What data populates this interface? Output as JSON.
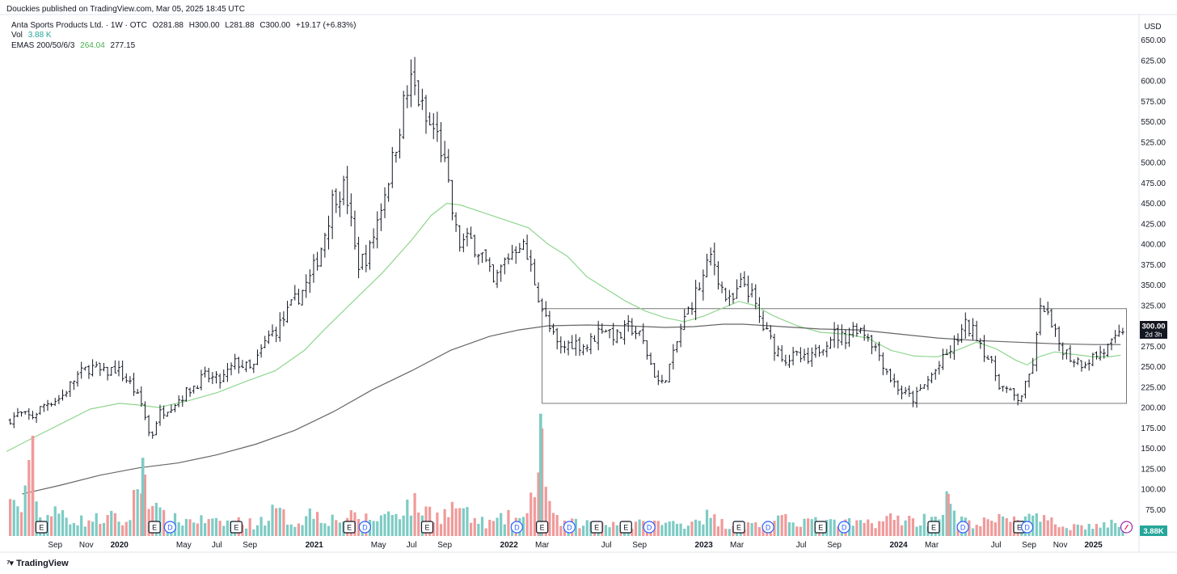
{
  "publisher_line": "Douckies published on TradingView.com, Mar 05, 2025 18:45 UTC",
  "legend": {
    "symbol": "Anta Sports Products Ltd. · 1W · OTC",
    "open": "O281.88",
    "high": "H300.00",
    "low": "L281.88",
    "close": "C300.00",
    "change": "+19.17 (+6.83%)",
    "vol_label": "Vol",
    "vol_value": "3.88 K",
    "emas_label": "EMAS 200/50/6/3",
    "ema50_value": "264.04",
    "ema200_value": "277.15"
  },
  "footer": {
    "brand": "TradingView"
  },
  "colors": {
    "up_volume": "#7dcbc4",
    "down_volume": "#f09a9a",
    "ema50": "#8fd68f",
    "ema200": "#666666",
    "bars": "#131722",
    "badge_dividend": "#2962ff",
    "price_tag_bg": "#131722",
    "volume_tag_bg": "#26a69a"
  },
  "chart_data": {
    "type": "ohlc",
    "title": "Anta Sports Products Ltd. · 1W · OTC",
    "currency": "USD",
    "ylim": [
      60,
      665
    ],
    "y_ticks": [
      "75.00",
      "100.00",
      "125.00",
      "150.00",
      "175.00",
      "200.00",
      "225.00",
      "250.00",
      "275.00",
      "300.00",
      "325.00",
      "350.00",
      "375.00",
      "400.00",
      "425.00",
      "450.00",
      "475.00",
      "500.00",
      "525.00",
      "550.00",
      "575.00",
      "600.00",
      "625.00",
      "650.00"
    ],
    "x_ticks": [
      {
        "label": "Sep",
        "t": 2019.67,
        "bold": false
      },
      {
        "label": "Nov",
        "t": 2019.83,
        "bold": false
      },
      {
        "label": "2020",
        "t": 2020.0,
        "bold": true
      },
      {
        "label": "May",
        "t": 2020.33,
        "bold": false
      },
      {
        "label": "Jul",
        "t": 2020.5,
        "bold": false
      },
      {
        "label": "Sep",
        "t": 2020.67,
        "bold": false
      },
      {
        "label": "2021",
        "t": 2021.0,
        "bold": true
      },
      {
        "label": "May",
        "t": 2021.33,
        "bold": false
      },
      {
        "label": "Jul",
        "t": 2021.5,
        "bold": false
      },
      {
        "label": "Sep",
        "t": 2021.67,
        "bold": false
      },
      {
        "label": "2022",
        "t": 2022.0,
        "bold": true
      },
      {
        "label": "Mar",
        "t": 2022.17,
        "bold": false
      },
      {
        "label": "Jul",
        "t": 2022.5,
        "bold": false
      },
      {
        "label": "Sep",
        "t": 2022.67,
        "bold": false
      },
      {
        "label": "2023",
        "t": 2023.0,
        "bold": true
      },
      {
        "label": "Mar",
        "t": 2023.17,
        "bold": false
      },
      {
        "label": "Jul",
        "t": 2023.5,
        "bold": false
      },
      {
        "label": "Sep",
        "t": 2023.67,
        "bold": false
      },
      {
        "label": "2024",
        "t": 2024.0,
        "bold": true
      },
      {
        "label": "Mar",
        "t": 2024.17,
        "bold": false
      },
      {
        "label": "Jul",
        "t": 2024.5,
        "bold": false
      },
      {
        "label": "Sep",
        "t": 2024.67,
        "bold": false
      },
      {
        "label": "Nov",
        "t": 2024.83,
        "bold": false
      },
      {
        "label": "2025",
        "t": 2025.0,
        "bold": true
      }
    ],
    "t_range": [
      2019.42,
      2025.23
    ],
    "price_path": [
      [
        2019.42,
        183
      ],
      [
        2019.48,
        192
      ],
      [
        2019.55,
        188
      ],
      [
        2019.62,
        205
      ],
      [
        2019.7,
        212
      ],
      [
        2019.78,
        238
      ],
      [
        2019.85,
        250
      ],
      [
        2019.92,
        242
      ],
      [
        2019.98,
        248
      ],
      [
        2020.06,
        228
      ],
      [
        2020.12,
        200
      ],
      [
        2020.16,
        160
      ],
      [
        2020.2,
        192
      ],
      [
        2020.28,
        205
      ],
      [
        2020.36,
        222
      ],
      [
        2020.44,
        238
      ],
      [
        2020.52,
        232
      ],
      [
        2020.6,
        256
      ],
      [
        2020.68,
        245
      ],
      [
        2020.76,
        285
      ],
      [
        2020.82,
        300
      ],
      [
        2020.9,
        330
      ],
      [
        2020.98,
        358
      ],
      [
        2021.04,
        400
      ],
      [
        2021.1,
        460
      ],
      [
        2021.16,
        470
      ],
      [
        2021.22,
        375
      ],
      [
        2021.28,
        388
      ],
      [
        2021.34,
        445
      ],
      [
        2021.4,
        500
      ],
      [
        2021.46,
        572
      ],
      [
        2021.5,
        600
      ],
      [
        2021.54,
        575
      ],
      [
        2021.58,
        545
      ],
      [
        2021.62,
        540
      ],
      [
        2021.66,
        510
      ],
      [
        2021.7,
        450
      ],
      [
        2021.74,
        400
      ],
      [
        2021.8,
        405
      ],
      [
        2021.86,
        388
      ],
      [
        2021.92,
        350
      ],
      [
        2021.98,
        380
      ],
      [
        2022.06,
        405
      ],
      [
        2022.12,
        365
      ],
      [
        2022.16,
        330
      ],
      [
        2022.2,
        300
      ],
      [
        2022.26,
        270
      ],
      [
        2022.32,
        280
      ],
      [
        2022.4,
        275
      ],
      [
        2022.48,
        300
      ],
      [
        2022.56,
        285
      ],
      [
        2022.62,
        300
      ],
      [
        2022.68,
        285
      ],
      [
        2022.74,
        245
      ],
      [
        2022.78,
        225
      ],
      [
        2022.84,
        260
      ],
      [
        2022.88,
        295
      ],
      [
        2022.94,
        330
      ],
      [
        2023.0,
        360
      ],
      [
        2023.04,
        388
      ],
      [
        2023.1,
        340
      ],
      [
        2023.14,
        325
      ],
      [
        2023.2,
        355
      ],
      [
        2023.24,
        340
      ],
      [
        2023.3,
        300
      ],
      [
        2023.36,
        275
      ],
      [
        2023.42,
        260
      ],
      [
        2023.48,
        262
      ],
      [
        2023.54,
        255
      ],
      [
        2023.6,
        275
      ],
      [
        2023.66,
        290
      ],
      [
        2023.72,
        285
      ],
      [
        2023.78,
        300
      ],
      [
        2023.84,
        290
      ],
      [
        2023.9,
        265
      ],
      [
        2023.96,
        235
      ],
      [
        2024.02,
        218
      ],
      [
        2024.08,
        210
      ],
      [
        2024.14,
        230
      ],
      [
        2024.22,
        255
      ],
      [
        2024.28,
        275
      ],
      [
        2024.34,
        300
      ],
      [
        2024.4,
        290
      ],
      [
        2024.46,
        260
      ],
      [
        2024.52,
        228
      ],
      [
        2024.58,
        215
      ],
      [
        2024.62,
        210
      ],
      [
        2024.66,
        230
      ],
      [
        2024.7,
        265
      ],
      [
        2024.72,
        310
      ],
      [
        2024.74,
        330
      ],
      [
        2024.78,
        300
      ],
      [
        2024.82,
        280
      ],
      [
        2024.88,
        262
      ],
      [
        2024.94,
        255
      ],
      [
        2025.0,
        262
      ],
      [
        2025.06,
        270
      ],
      [
        2025.12,
        282
      ],
      [
        2025.16,
        300
      ]
    ],
    "ema50_path": [
      [
        2019.42,
        146
      ],
      [
        2019.55,
        162
      ],
      [
        2019.7,
        180
      ],
      [
        2019.85,
        198
      ],
      [
        2020.0,
        205
      ],
      [
        2020.1,
        203
      ],
      [
        2020.2,
        200
      ],
      [
        2020.35,
        208
      ],
      [
        2020.5,
        218
      ],
      [
        2020.65,
        232
      ],
      [
        2020.8,
        245
      ],
      [
        2020.95,
        270
      ],
      [
        2021.05,
        295
      ],
      [
        2021.2,
        330
      ],
      [
        2021.35,
        365
      ],
      [
        2021.5,
        405
      ],
      [
        2021.6,
        435
      ],
      [
        2021.68,
        450
      ],
      [
        2021.75,
        448
      ],
      [
        2021.85,
        440
      ],
      [
        2022.0,
        428
      ],
      [
        2022.1,
        420
      ],
      [
        2022.2,
        400
      ],
      [
        2022.3,
        385
      ],
      [
        2022.4,
        360
      ],
      [
        2022.5,
        345
      ],
      [
        2022.6,
        330
      ],
      [
        2022.7,
        318
      ],
      [
        2022.8,
        310
      ],
      [
        2022.9,
        305
      ],
      [
        2023.0,
        312
      ],
      [
        2023.1,
        322
      ],
      [
        2023.18,
        330
      ],
      [
        2023.26,
        325
      ],
      [
        2023.36,
        312
      ],
      [
        2023.48,
        300
      ],
      [
        2023.6,
        292
      ],
      [
        2023.72,
        290
      ],
      [
        2023.84,
        285
      ],
      [
        2023.96,
        270
      ],
      [
        2024.08,
        263
      ],
      [
        2024.2,
        262
      ],
      [
        2024.32,
        272
      ],
      [
        2024.4,
        280
      ],
      [
        2024.5,
        272
      ],
      [
        2024.6,
        258
      ],
      [
        2024.66,
        252
      ],
      [
        2024.72,
        262
      ],
      [
        2024.8,
        268
      ],
      [
        2024.9,
        265
      ],
      [
        2025.0,
        262
      ],
      [
        2025.08,
        262
      ],
      [
        2025.14,
        264
      ]
    ],
    "ema200_path": [
      [
        2019.5,
        94
      ],
      [
        2019.7,
        105
      ],
      [
        2019.9,
        117
      ],
      [
        2020.1,
        126
      ],
      [
        2020.3,
        132
      ],
      [
        2020.5,
        142
      ],
      [
        2020.7,
        155
      ],
      [
        2020.9,
        172
      ],
      [
        2021.1,
        195
      ],
      [
        2021.3,
        222
      ],
      [
        2021.5,
        245
      ],
      [
        2021.7,
        270
      ],
      [
        2021.9,
        287
      ],
      [
        2022.05,
        295
      ],
      [
        2022.2,
        300
      ],
      [
        2022.4,
        301
      ],
      [
        2022.6,
        300
      ],
      [
        2022.8,
        298
      ],
      [
        2022.95,
        299
      ],
      [
        2023.1,
        302
      ],
      [
        2023.2,
        302
      ],
      [
        2023.4,
        299
      ],
      [
        2023.6,
        296
      ],
      [
        2023.8,
        295
      ],
      [
        2024.0,
        290
      ],
      [
        2024.2,
        285
      ],
      [
        2024.4,
        282
      ],
      [
        2024.6,
        280
      ],
      [
        2024.8,
        278
      ],
      [
        2025.0,
        277
      ],
      [
        2025.14,
        277
      ]
    ],
    "volume_path": [
      [
        2019.42,
        0.32
      ],
      [
        2019.47,
        0.45
      ],
      [
        2019.5,
        0.28
      ],
      [
        2019.53,
        0.58
      ],
      [
        2019.555,
        1.0
      ],
      [
        2019.58,
        0.2
      ],
      [
        2019.63,
        0.25
      ],
      [
        2019.7,
        0.27
      ],
      [
        2019.8,
        0.18
      ],
      [
        2019.88,
        0.2
      ],
      [
        2019.96,
        0.22
      ],
      [
        2020.04,
        0.15
      ],
      [
        2020.12,
        0.78
      ],
      [
        2020.2,
        0.25
      ],
      [
        2020.3,
        0.18
      ],
      [
        2020.4,
        0.2
      ],
      [
        2020.5,
        0.15
      ],
      [
        2020.6,
        0.18
      ],
      [
        2020.7,
        0.14
      ],
      [
        2020.8,
        0.3
      ],
      [
        2020.9,
        0.15
      ],
      [
        2021.0,
        0.3
      ],
      [
        2021.08,
        0.2
      ],
      [
        2021.18,
        0.22
      ],
      [
        2021.3,
        0.2
      ],
      [
        2021.4,
        0.28
      ],
      [
        2021.5,
        0.38
      ],
      [
        2021.58,
        0.3
      ],
      [
        2021.66,
        0.25
      ],
      [
        2021.74,
        0.38
      ],
      [
        2021.8,
        0.2
      ],
      [
        2021.9,
        0.15
      ],
      [
        2022.0,
        0.22
      ],
      [
        2022.1,
        0.2
      ],
      [
        2022.1625,
        1.22
      ],
      [
        2022.22,
        0.2
      ],
      [
        2022.3,
        0.15
      ],
      [
        2022.4,
        0.15
      ],
      [
        2022.5,
        0.18
      ],
      [
        2022.6,
        0.12
      ],
      [
        2022.7,
        0.15
      ],
      [
        2022.8,
        0.15
      ],
      [
        2022.9,
        0.15
      ],
      [
        2023.0,
        0.25
      ],
      [
        2023.1,
        0.15
      ],
      [
        2023.2,
        0.12
      ],
      [
        2023.3,
        0.15
      ],
      [
        2023.4,
        0.18
      ],
      [
        2023.5,
        0.2
      ],
      [
        2023.6,
        0.15
      ],
      [
        2023.7,
        0.15
      ],
      [
        2023.8,
        0.15
      ],
      [
        2023.9,
        0.18
      ],
      [
        2024.0,
        0.22
      ],
      [
        2024.08,
        0.18
      ],
      [
        2024.18,
        0.22
      ],
      [
        2024.255,
        0.42
      ],
      [
        2024.3,
        0.18
      ],
      [
        2024.4,
        0.15
      ],
      [
        2024.5,
        0.18
      ],
      [
        2024.6,
        0.25
      ],
      [
        2024.7,
        0.2
      ],
      [
        2024.8,
        0.15
      ],
      [
        2024.9,
        0.12
      ],
      [
        2025.0,
        0.12
      ],
      [
        2025.1,
        0.14
      ],
      [
        2025.16,
        0.13
      ]
    ],
    "events": [
      {
        "kind": "E",
        "t": 2019.6
      },
      {
        "kind": "E",
        "t": 2020.18
      },
      {
        "kind": "D",
        "t": 2020.26
      },
      {
        "kind": "E",
        "t": 2020.6
      },
      {
        "kind": "E",
        "t": 2021.18
      },
      {
        "kind": "D",
        "t": 2021.26
      },
      {
        "kind": "E",
        "t": 2021.58
      },
      {
        "kind": "D",
        "t": 2022.04
      },
      {
        "kind": "E",
        "t": 2022.17
      },
      {
        "kind": "D",
        "t": 2022.31
      },
      {
        "kind": "E",
        "t": 2022.45
      },
      {
        "kind": "E",
        "t": 2022.6
      },
      {
        "kind": "D",
        "t": 2022.72
      },
      {
        "kind": "E",
        "t": 2023.18
      },
      {
        "kind": "D",
        "t": 2023.33
      },
      {
        "kind": "E",
        "t": 2023.6
      },
      {
        "kind": "D",
        "t": 2023.72
      },
      {
        "kind": "E",
        "t": 2024.18
      },
      {
        "kind": "D",
        "t": 2024.33
      },
      {
        "kind": "E",
        "t": 2024.62
      },
      {
        "kind": "D",
        "t": 2024.66
      },
      {
        "kind": "S",
        "t": 2025.17
      }
    ],
    "range_box": {
      "t_start": 2022.17,
      "t_end": 2025.17,
      "low": 205,
      "high": 321
    },
    "last_price": {
      "value": "300.00",
      "countdown": "2d 3h"
    },
    "last_volume": "3.88K"
  }
}
